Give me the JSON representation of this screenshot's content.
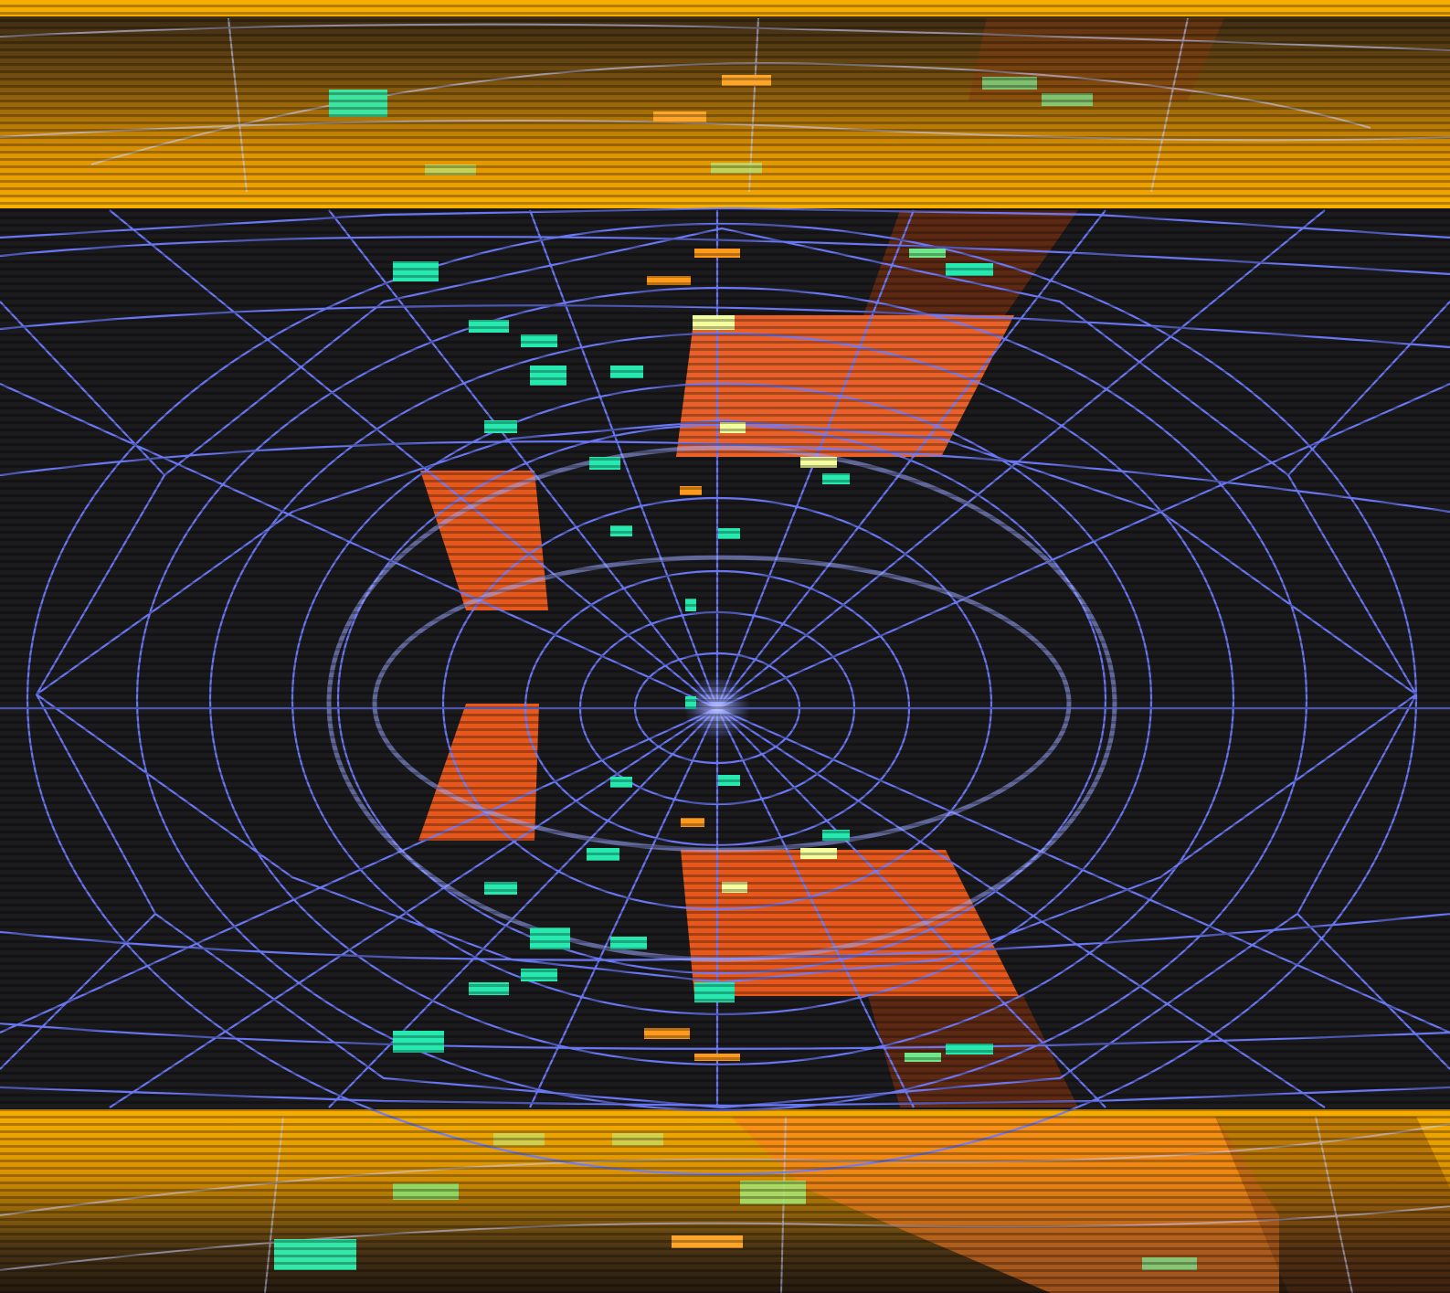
{
  "image": {
    "subject": "particle-detector-event-display",
    "palette": {
      "background": "#1a1a1c",
      "band": "#f2a100",
      "band_dark": "#7a5000",
      "wire": "#6f7dff",
      "wire_light": "#b9c2ff",
      "calo": "#e8541a",
      "calo_dark": "#6b2a12",
      "hit_green": "#24e8a8",
      "hit_yellow": "#f8ff9c",
      "hit_orange": "#ff9a1a"
    }
  }
}
